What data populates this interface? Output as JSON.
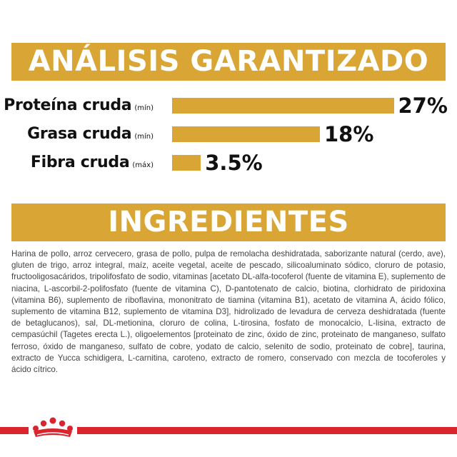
{
  "analysis": {
    "title": "ANÁLISIS GARANTIZADO",
    "rows": [
      {
        "name": "Proteína cruda",
        "qualifier": "(mín)",
        "value_text": "27%",
        "value": 27
      },
      {
        "name": "Grasa cruda",
        "qualifier": "(mín)",
        "value_text": "18%",
        "value": 18
      },
      {
        "name": "Fibra cruda",
        "qualifier": "(máx)",
        "value_text": "3.5%",
        "value": 3.5
      }
    ]
  },
  "ingredients": {
    "title": "INGREDIENTES",
    "text": "Harina de pollo, arroz cervecero, grasa de pollo, pulpa de remolacha deshidratada, saborizante natural (cerdo, ave), gluten de trigo, arroz integral, maíz, aceite vegetal, aceite de pescado, silicoaluminato sódico, cloruro de potasio, fructooligosacáridos, tripolifosfato de sodio, vitaminas [acetato DL-alfa-tocoferol (fuente de vitamina E), suplemento de niacina, L-ascorbil-2-polifosfato (fuente de vitamina C), D-pantotenato de calcio, biotina, clorhidrato de piridoxina (vitamina B6), suplemento de riboflavina, mononitrato de tiamina (vitamina B1), acetato de vitamina A, ácido fólico, suplemento de vitamina B12, suplemento de vitamina D3], hidrolizado de levadura de cerveza deshidratada (fuente de betaglucanos), sal, DL-metionina, cloruro de colina, L-tirosina, fosfato de monocalcio, L-lisina, extracto de cempasúchil (Tagetes erecta L.), oligoelementos [proteinato de zinc, óxido de zinc, proteinato de manganeso, sulfato ferroso, óxido de manganeso, sulfato de cobre, yodato de calcio, selenito de sodio, proteinato de cobre], taurina, extracto de Yucca schidigera, L-carnitina, caroteno, extracto de romero, conservado con mezcla de tocoferoles y ácido cítrico."
  },
  "colors": {
    "accent": "#d9a534",
    "brand_red": "#d8252e"
  },
  "icons": {
    "footer": "crown-icon"
  }
}
